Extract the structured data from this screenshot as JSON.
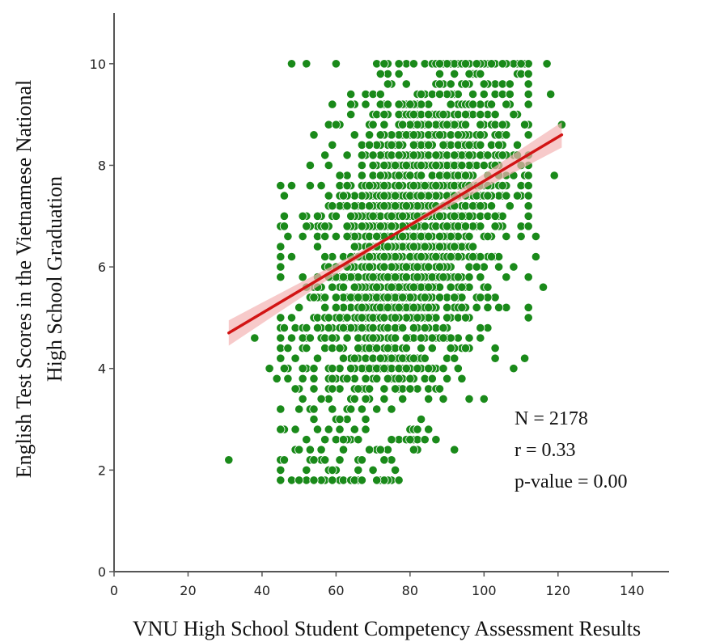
{
  "chart_data": {
    "type": "scatter",
    "xlabel": "VNU High School Student Competency Assessment Results",
    "ylabel_lines": [
      "English Test Scores in the Vietnamese National",
      "High School Graduation"
    ],
    "xlim": [
      0,
      150
    ],
    "ylim": [
      0,
      11
    ],
    "xticks": [
      0,
      20,
      40,
      60,
      80,
      100,
      120,
      140
    ],
    "yticks": [
      0,
      2,
      4,
      6,
      8,
      10
    ],
    "grid": false,
    "n": 2178,
    "point_color": "#1a8a1a",
    "line_color": "#d21414",
    "band_color": "#f4b4b4",
    "regression": {
      "x0": 31,
      "y0": 4.7,
      "x1": 121,
      "y1": 8.6,
      "band_half_width": [
        0.25,
        0.02,
        0.25
      ]
    },
    "annotation": [
      "N = 2178",
      "r = 0.33",
      "p-value = 0.00"
    ],
    "sample_points": [
      [
        31,
        2.2
      ],
      [
        38,
        4.6
      ],
      [
        42,
        4.0
      ],
      [
        44,
        3.8
      ],
      [
        45,
        2.8
      ],
      [
        46,
        2.2
      ],
      [
        46,
        7.0
      ],
      [
        47,
        6.6
      ],
      [
        48,
        10.0
      ],
      [
        48,
        7.6
      ],
      [
        50,
        2.4
      ],
      [
        53,
        7.6
      ],
      [
        54,
        8.6
      ],
      [
        55,
        2.8
      ],
      [
        57,
        2.2
      ],
      [
        60,
        10.0
      ],
      [
        64,
        9.2
      ],
      [
        67,
        1.8
      ],
      [
        70,
        2.0
      ],
      [
        72,
        9.4
      ],
      [
        76,
        2.0
      ],
      [
        81,
        2.4
      ],
      [
        88,
        10.0
      ],
      [
        92,
        2.4
      ],
      [
        95,
        8.8
      ],
      [
        100,
        3.4
      ],
      [
        103,
        4.2
      ],
      [
        105,
        10.0
      ],
      [
        106,
        5.8
      ],
      [
        108,
        4.0
      ],
      [
        112,
        9.8
      ],
      [
        114,
        6.6
      ],
      [
        114,
        6.2
      ],
      [
        116,
        5.6
      ],
      [
        117,
        10.0
      ],
      [
        118,
        9.4
      ],
      [
        119,
        7.8
      ],
      [
        121,
        8.8
      ]
    ]
  }
}
